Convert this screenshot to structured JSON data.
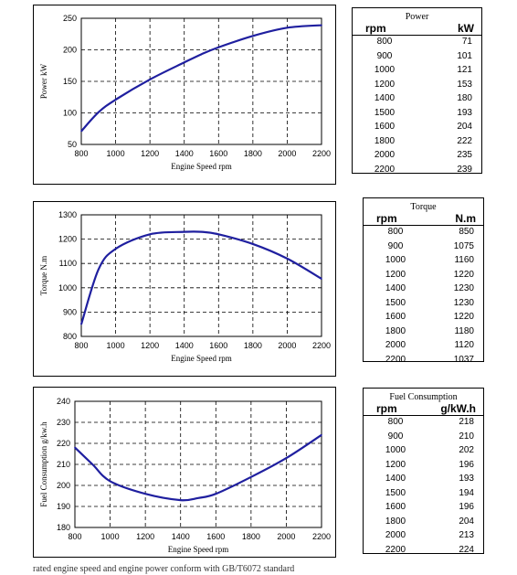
{
  "colors": {
    "line": "#1f1f9f",
    "grid": "#000000",
    "border": "#000000"
  },
  "chart_data": [
    {
      "type": "line",
      "x": [
        800,
        900,
        1000,
        1200,
        1400,
        1500,
        1600,
        1800,
        2000,
        2200
      ],
      "series": [
        {
          "values": [
            71,
            101,
            121,
            153,
            180,
            193,
            204,
            222,
            235,
            239
          ]
        }
      ],
      "xlabel": "Engine Speed rpm",
      "ylabel": "Power kW",
      "xlim": [
        800,
        2200
      ],
      "ylim": [
        50,
        250
      ],
      "xticks": [
        800,
        1000,
        1200,
        1400,
        1600,
        1800,
        2000,
        2200
      ],
      "yticks": [
        50,
        100,
        150,
        200,
        250
      ],
      "grid": true
    },
    {
      "type": "line",
      "x": [
        800,
        900,
        1000,
        1200,
        1400,
        1500,
        1600,
        1800,
        2000,
        2200
      ],
      "series": [
        {
          "values": [
            850,
            1075,
            1160,
            1220,
            1230,
            1230,
            1220,
            1180,
            1120,
            1037
          ]
        }
      ],
      "xlabel": "Engine Speed rpm",
      "ylabel": "Torque N.m",
      "xlim": [
        800,
        2200
      ],
      "ylim": [
        800,
        1300
      ],
      "xticks": [
        800,
        1000,
        1200,
        1400,
        1600,
        1800,
        2000,
        2200
      ],
      "yticks": [
        800,
        900,
        1000,
        1100,
        1200,
        1300
      ],
      "grid": true
    },
    {
      "type": "line",
      "x": [
        800,
        900,
        1000,
        1200,
        1400,
        1500,
        1600,
        1800,
        2000,
        2200
      ],
      "series": [
        {
          "values": [
            218,
            210,
            202,
            196,
            193,
            194,
            196,
            204,
            213,
            224
          ]
        }
      ],
      "xlabel": "Engine Speed rpm",
      "ylabel": "Fuel Consumption g/kw.h",
      "xlim": [
        800,
        2200
      ],
      "ylim": [
        180,
        240
      ],
      "xticks": [
        800,
        1000,
        1200,
        1400,
        1600,
        1800,
        2000,
        2200
      ],
      "yticks": [
        180,
        190,
        200,
        210,
        220,
        230,
        240
      ],
      "grid": true
    }
  ],
  "tables": [
    {
      "title": "Power",
      "col1": "rpm",
      "col2": "kW",
      "rows": [
        [
          "800",
          "71"
        ],
        [
          "900",
          "101"
        ],
        [
          "1000",
          "121"
        ],
        [
          "1200",
          "153"
        ],
        [
          "1400",
          "180"
        ],
        [
          "1500",
          "193"
        ],
        [
          "1600",
          "204"
        ],
        [
          "1800",
          "222"
        ],
        [
          "2000",
          "235"
        ],
        [
          "2200",
          "239"
        ]
      ]
    },
    {
      "title": "Torque",
      "col1": "rpm",
      "col2": "N.m",
      "rows": [
        [
          "800",
          "850"
        ],
        [
          "900",
          "1075"
        ],
        [
          "1000",
          "1160"
        ],
        [
          "1200",
          "1220"
        ],
        [
          "1400",
          "1230"
        ],
        [
          "1500",
          "1230"
        ],
        [
          "1600",
          "1220"
        ],
        [
          "1800",
          "1180"
        ],
        [
          "2000",
          "1120"
        ],
        [
          "2200",
          "1037"
        ]
      ]
    },
    {
      "title": "Fuel Consumption",
      "col1": "rpm",
      "col2": "g/kW.h",
      "rows": [
        [
          "800",
          "218"
        ],
        [
          "900",
          "210"
        ],
        [
          "1000",
          "202"
        ],
        [
          "1200",
          "196"
        ],
        [
          "1400",
          "193"
        ],
        [
          "1500",
          "194"
        ],
        [
          "1600",
          "196"
        ],
        [
          "1800",
          "204"
        ],
        [
          "2000",
          "213"
        ],
        [
          "2200",
          "224"
        ]
      ]
    }
  ],
  "footer": "rated engine speed and engine power conform with GB/T6072 standard"
}
